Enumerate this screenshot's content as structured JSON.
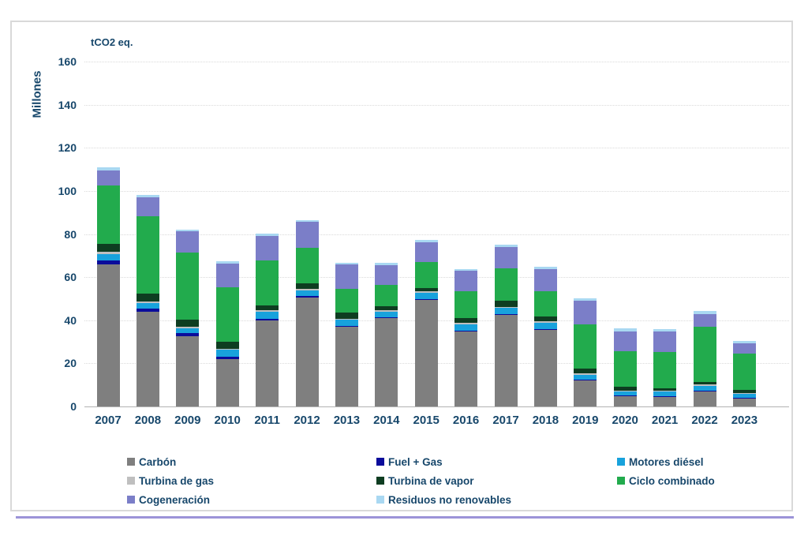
{
  "page": {
    "text_color": "#17476b",
    "frame_border_color": "#d9d9d9",
    "divider_color": "#9c93d8",
    "background": "#ffffff"
  },
  "chart_data": {
    "type": "bar",
    "stacked": true,
    "title": "tCO2 eq.",
    "ylabel": "Millones",
    "xlabel": "",
    "ylim": [
      0,
      160
    ],
    "y_ticks": [
      0,
      20,
      40,
      60,
      80,
      100,
      120,
      140,
      160
    ],
    "grid": "horizontal-dotted",
    "legend_position": "bottom",
    "categories": [
      "2007",
      "2008",
      "2009",
      "2010",
      "2011",
      "2012",
      "2013",
      "2014",
      "2015",
      "2016",
      "2017",
      "2018",
      "2019",
      "2020",
      "2021",
      "2022",
      "2023"
    ],
    "series": [
      {
        "name": "Carbón",
        "color": "#7f7f7f",
        "values": [
          66.0,
          44.0,
          32.5,
          22.0,
          40.0,
          50.5,
          37.0,
          41.0,
          49.5,
          35.0,
          42.5,
          35.5,
          12.0,
          5.0,
          4.5,
          7.0,
          4.0
        ]
      },
      {
        "name": "Fuel + Gas",
        "color": "#0b0c9b",
        "values": [
          1.6,
          1.5,
          1.5,
          1.2,
          0.6,
          0.6,
          0.5,
          0.4,
          0.4,
          0.3,
          0.4,
          0.4,
          0.3,
          0.2,
          0.2,
          0.2,
          0.2
        ]
      },
      {
        "name": "Motores diésel",
        "color": "#18a2dc",
        "values": [
          3.1,
          2.6,
          2.4,
          3.2,
          3.2,
          2.6,
          2.7,
          2.7,
          3.0,
          2.9,
          2.9,
          2.9,
          2.4,
          2.0,
          2.2,
          2.4,
          1.9
        ]
      },
      {
        "name": "Turbina de gas",
        "color": "#bfbfbf",
        "values": [
          1.2,
          0.7,
          0.5,
          0.5,
          0.8,
          0.7,
          0.5,
          0.5,
          0.4,
          0.5,
          0.4,
          0.6,
          0.6,
          0.3,
          0.3,
          0.5,
          0.3
        ]
      },
      {
        "name": "Turbina de vapor",
        "color": "#0e3d21",
        "values": [
          3.6,
          3.7,
          3.4,
          3.1,
          2.1,
          2.6,
          2.8,
          1.8,
          1.7,
          2.3,
          2.8,
          2.2,
          2.1,
          1.5,
          1.3,
          1.2,
          1.2
        ]
      },
      {
        "name": "Ciclo combinado",
        "color": "#22ab4d",
        "values": [
          27.0,
          35.7,
          31.0,
          25.3,
          21.1,
          16.5,
          11.2,
          10.1,
          12.0,
          12.4,
          15.1,
          12.0,
          20.7,
          16.5,
          16.8,
          25.6,
          16.9
        ]
      },
      {
        "name": "Cogeneración",
        "color": "#7b7ec8",
        "values": [
          7.1,
          8.7,
          9.8,
          11.0,
          11.4,
          12.0,
          11.1,
          9.2,
          9.3,
          9.4,
          9.8,
          10.2,
          10.8,
          9.1,
          9.3,
          6.0,
          4.8
        ]
      },
      {
        "name": "Residuos no renovables",
        "color": "#a9d8f2",
        "values": [
          1.5,
          1.1,
          0.9,
          1.1,
          1.1,
          0.8,
          0.9,
          1.0,
          1.0,
          1.0,
          1.0,
          1.0,
          1.1,
          1.6,
          1.2,
          1.3,
          1.2
        ]
      }
    ],
    "legend_columns": [
      [
        0,
        3,
        6
      ],
      [
        1,
        4,
        7
      ],
      [
        2,
        5
      ]
    ]
  }
}
